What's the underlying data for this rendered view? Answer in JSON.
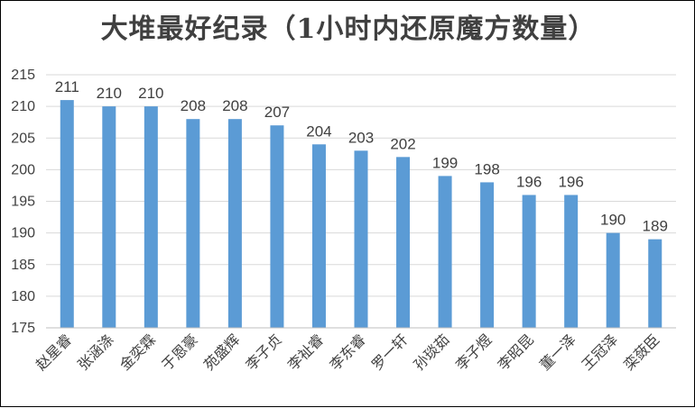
{
  "chart_data": {
    "type": "bar",
    "title": "大堆最好纪录（1小时内还原魔方数量）",
    "categories": [
      "赵星睿",
      "张涵涤",
      "金奕霖",
      "于恩豪",
      "苑盛辉",
      "李子贞",
      "李祉睿",
      "李东睿",
      "罗一轩",
      "孙琰茹",
      "李子煜",
      "李昭昆",
      "董一泽",
      "王冠泽",
      "栾蔹臣"
    ],
    "values": [
      211,
      210,
      210,
      208,
      208,
      207,
      204,
      203,
      202,
      199,
      198,
      196,
      196,
      190,
      189
    ],
    "ylim": [
      175,
      215
    ],
    "yticks": [
      175,
      180,
      185,
      190,
      195,
      200,
      205,
      210,
      215
    ],
    "grid": true,
    "legend": "none",
    "bar_color": "#5B9BD5"
  }
}
